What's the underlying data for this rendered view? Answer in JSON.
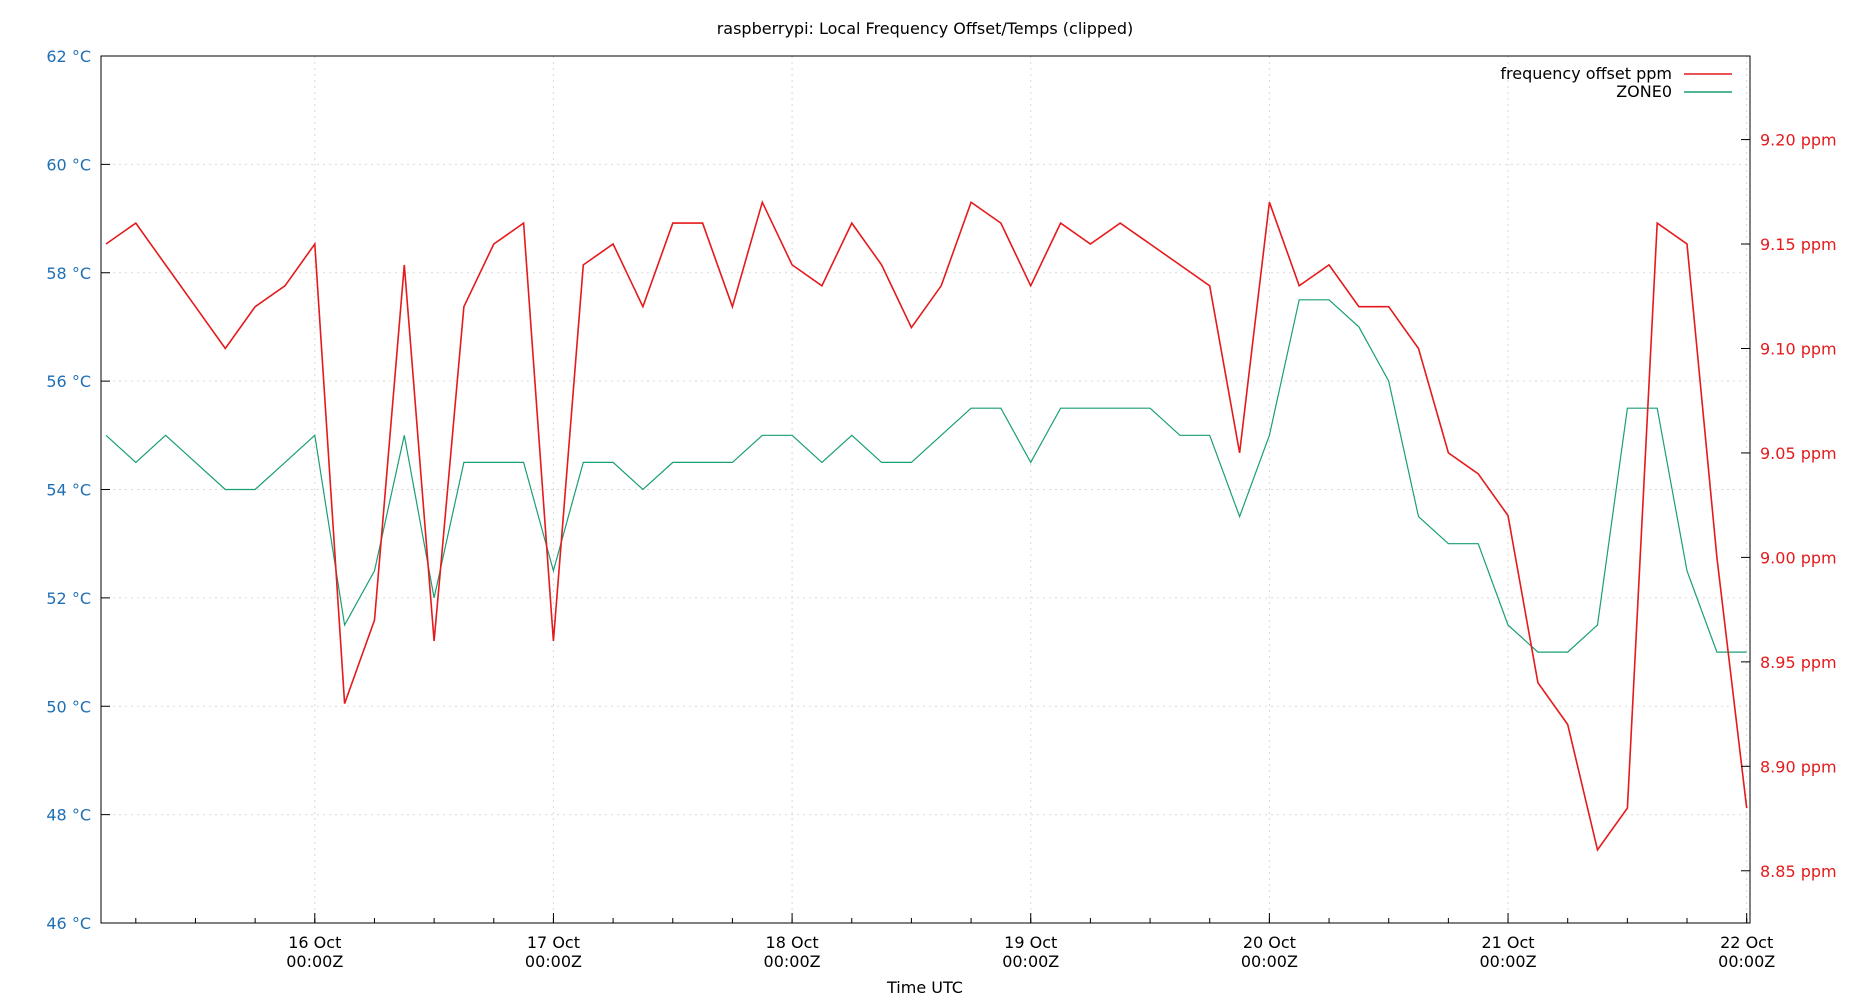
{
  "chart_data": {
    "type": "line",
    "title": "raspberrypi: Local Frequency Offset/Temps (clipped)",
    "xlabel": "Time UTC",
    "ylabel_left": "",
    "ylabel_right": "",
    "x_range": [
      "2023-10-15T02:30Z",
      "2023-10-22T00:20Z"
    ],
    "x_ticks": [
      {
        "date": "16 Oct",
        "time": "00:00Z",
        "t": "2023-10-16T00:00Z"
      },
      {
        "date": "17 Oct",
        "time": "00:00Z",
        "t": "2023-10-17T00:00Z"
      },
      {
        "date": "18 Oct",
        "time": "00:00Z",
        "t": "2023-10-18T00:00Z"
      },
      {
        "date": "19 Oct",
        "time": "00:00Z",
        "t": "2023-10-19T00:00Z"
      },
      {
        "date": "20 Oct",
        "time": "00:00Z",
        "t": "2023-10-20T00:00Z"
      },
      {
        "date": "21 Oct",
        "time": "00:00Z",
        "t": "2023-10-21T00:00Z"
      },
      {
        "date": "22 Oct",
        "time": "00:00Z",
        "t": "2023-10-22T00:00Z"
      }
    ],
    "y_left": {
      "unit": "°C",
      "range": [
        46,
        62
      ],
      "ticks": [
        46,
        48,
        50,
        52,
        54,
        56,
        58,
        60,
        62
      ],
      "tick_labels": [
        "46 °C",
        "48 °C",
        "50 °C",
        "52 °C",
        "54 °C",
        "56 °C",
        "58 °C",
        "60 °C",
        "62 °C"
      ]
    },
    "y_right": {
      "unit": "ppm",
      "range": [
        8.825,
        9.24
      ],
      "ticks": [
        8.85,
        8.9,
        8.95,
        9.0,
        9.05,
        9.1,
        9.15,
        9.2
      ],
      "tick_labels": [
        "8.85 ppm",
        "8.90 ppm",
        "8.95 ppm",
        "9.00 ppm",
        "9.05 ppm",
        "9.10 ppm",
        "9.15 ppm",
        "9.20 ppm"
      ]
    },
    "grid": true,
    "legend_position": "top-right",
    "series": [
      {
        "name": "frequency offset ppm",
        "axis": "right",
        "color": "#e41a1c",
        "x": [
          "2023-10-15T03:00Z",
          "2023-10-15T06:00Z",
          "2023-10-15T09:00Z",
          "2023-10-15T12:00Z",
          "2023-10-15T15:00Z",
          "2023-10-15T18:00Z",
          "2023-10-15T21:00Z",
          "2023-10-16T00:00Z",
          "2023-10-16T03:00Z",
          "2023-10-16T06:00Z",
          "2023-10-16T09:00Z",
          "2023-10-16T12:00Z",
          "2023-10-16T15:00Z",
          "2023-10-16T18:00Z",
          "2023-10-16T21:00Z",
          "2023-10-17T00:00Z",
          "2023-10-17T03:00Z",
          "2023-10-17T06:00Z",
          "2023-10-17T09:00Z",
          "2023-10-17T12:00Z",
          "2023-10-17T15:00Z",
          "2023-10-17T18:00Z",
          "2023-10-17T21:00Z",
          "2023-10-18T00:00Z",
          "2023-10-18T03:00Z",
          "2023-10-18T06:00Z",
          "2023-10-18T09:00Z",
          "2023-10-18T12:00Z",
          "2023-10-18T15:00Z",
          "2023-10-18T18:00Z",
          "2023-10-18T21:00Z",
          "2023-10-19T00:00Z",
          "2023-10-19T03:00Z",
          "2023-10-19T06:00Z",
          "2023-10-19T09:00Z",
          "2023-10-19T12:00Z",
          "2023-10-19T15:00Z",
          "2023-10-19T18:00Z",
          "2023-10-19T21:00Z",
          "2023-10-20T00:00Z",
          "2023-10-20T03:00Z",
          "2023-10-20T06:00Z",
          "2023-10-20T09:00Z",
          "2023-10-20T12:00Z",
          "2023-10-20T15:00Z",
          "2023-10-20T18:00Z",
          "2023-10-20T21:00Z",
          "2023-10-21T00:00Z",
          "2023-10-21T03:00Z",
          "2023-10-21T06:00Z",
          "2023-10-21T09:00Z",
          "2023-10-21T12:00Z",
          "2023-10-21T15:00Z",
          "2023-10-21T18:00Z",
          "2023-10-21T21:00Z",
          "2023-10-22T00:00Z"
        ],
        "values": [
          9.15,
          9.16,
          9.14,
          9.12,
          9.1,
          9.12,
          9.13,
          9.15,
          8.93,
          8.97,
          9.14,
          8.96,
          9.12,
          9.15,
          9.16,
          8.96,
          9.14,
          9.15,
          9.12,
          9.16,
          9.16,
          9.12,
          9.17,
          9.14,
          9.13,
          9.16,
          9.14,
          9.11,
          9.13,
          9.17,
          9.16,
          9.13,
          9.16,
          9.15,
          9.16,
          9.15,
          9.14,
          9.13,
          9.05,
          9.17,
          9.13,
          9.14,
          9.12,
          9.12,
          9.1,
          9.05,
          9.04,
          9.02,
          8.94,
          8.92,
          8.86,
          8.88,
          9.16,
          9.15,
          9.0,
          8.88
        ]
      },
      {
        "name": "ZONE0",
        "axis": "left",
        "color": "#1a9e77",
        "x": [
          "2023-10-15T03:00Z",
          "2023-10-15T06:00Z",
          "2023-10-15T09:00Z",
          "2023-10-15T12:00Z",
          "2023-10-15T15:00Z",
          "2023-10-15T18:00Z",
          "2023-10-15T21:00Z",
          "2023-10-16T00:00Z",
          "2023-10-16T03:00Z",
          "2023-10-16T06:00Z",
          "2023-10-16T09:00Z",
          "2023-10-16T12:00Z",
          "2023-10-16T15:00Z",
          "2023-10-16T18:00Z",
          "2023-10-16T21:00Z",
          "2023-10-17T00:00Z",
          "2023-10-17T03:00Z",
          "2023-10-17T06:00Z",
          "2023-10-17T09:00Z",
          "2023-10-17T12:00Z",
          "2023-10-17T15:00Z",
          "2023-10-17T18:00Z",
          "2023-10-17T21:00Z",
          "2023-10-18T00:00Z",
          "2023-10-18T03:00Z",
          "2023-10-18T06:00Z",
          "2023-10-18T09:00Z",
          "2023-10-18T12:00Z",
          "2023-10-18T15:00Z",
          "2023-10-18T18:00Z",
          "2023-10-18T21:00Z",
          "2023-10-19T00:00Z",
          "2023-10-19T03:00Z",
          "2023-10-19T06:00Z",
          "2023-10-19T09:00Z",
          "2023-10-19T12:00Z",
          "2023-10-19T15:00Z",
          "2023-10-19T18:00Z",
          "2023-10-19T21:00Z",
          "2023-10-20T00:00Z",
          "2023-10-20T03:00Z",
          "2023-10-20T06:00Z",
          "2023-10-20T09:00Z",
          "2023-10-20T12:00Z",
          "2023-10-20T15:00Z",
          "2023-10-20T18:00Z",
          "2023-10-20T21:00Z",
          "2023-10-21T00:00Z",
          "2023-10-21T03:00Z",
          "2023-10-21T06:00Z",
          "2023-10-21T09:00Z",
          "2023-10-21T12:00Z",
          "2023-10-21T15:00Z",
          "2023-10-21T18:00Z",
          "2023-10-21T21:00Z",
          "2023-10-22T00:00Z"
        ],
        "values": [
          55.0,
          54.5,
          55.0,
          54.5,
          54.0,
          54.0,
          54.5,
          55.0,
          51.5,
          52.5,
          55.0,
          52.0,
          54.5,
          54.5,
          54.5,
          52.5,
          54.5,
          54.5,
          54.0,
          54.5,
          54.5,
          54.5,
          55.0,
          55.0,
          54.5,
          55.0,
          54.5,
          54.5,
          55.0,
          55.5,
          55.5,
          54.5,
          55.5,
          55.5,
          55.5,
          55.5,
          55.0,
          55.0,
          53.5,
          55.0,
          57.5,
          57.5,
          57.0,
          56.0,
          53.5,
          53.0,
          53.0,
          51.5,
          51.0,
          51.0,
          51.5,
          55.5,
          55.5,
          52.5,
          51.0,
          51.0
        ]
      }
    ]
  }
}
